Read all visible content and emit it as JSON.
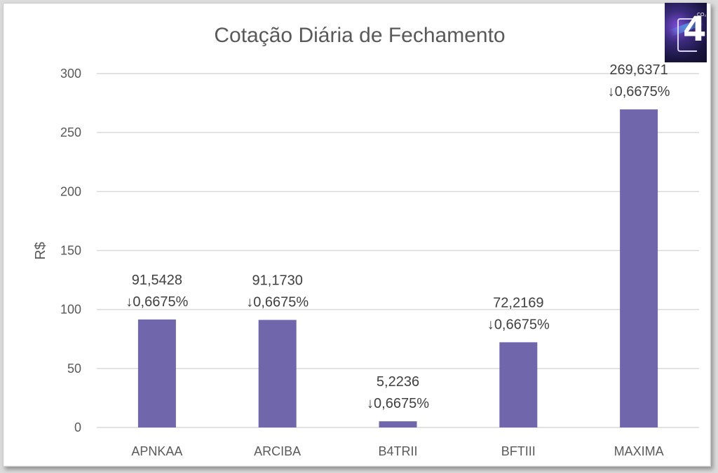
{
  "chart_data": {
    "type": "bar",
    "title": "Cotação Diária de Fechamento",
    "xlabel": "",
    "ylabel": "R$",
    "ylim": [
      0,
      300
    ],
    "yticks": [
      "0",
      "50",
      "100",
      "150",
      "200",
      "250",
      "300"
    ],
    "ytick_values": [
      0,
      50,
      100,
      150,
      200,
      250,
      300
    ],
    "grid": true,
    "categories": [
      "APNKAA",
      "ARCIBA",
      "B4TRII",
      "BFTIII",
      "MAXIMA"
    ],
    "values": [
      91.5428,
      91.173,
      5.2236,
      72.2169,
      269.6371
    ],
    "value_labels": [
      "91,5428",
      "91,1730",
      "5,2236",
      "72,2169",
      "269,6371"
    ],
    "change_labels": [
      "↓0,6675%",
      "↓0,6675%",
      "↓0,6675%",
      "↓0,6675%",
      "↓0,6675%"
    ],
    "bar_color": "#7066ab",
    "grid_color": "#d9d9d9"
  },
  "logo": {
    "glyph": "4",
    "sub": "CO₂"
  }
}
